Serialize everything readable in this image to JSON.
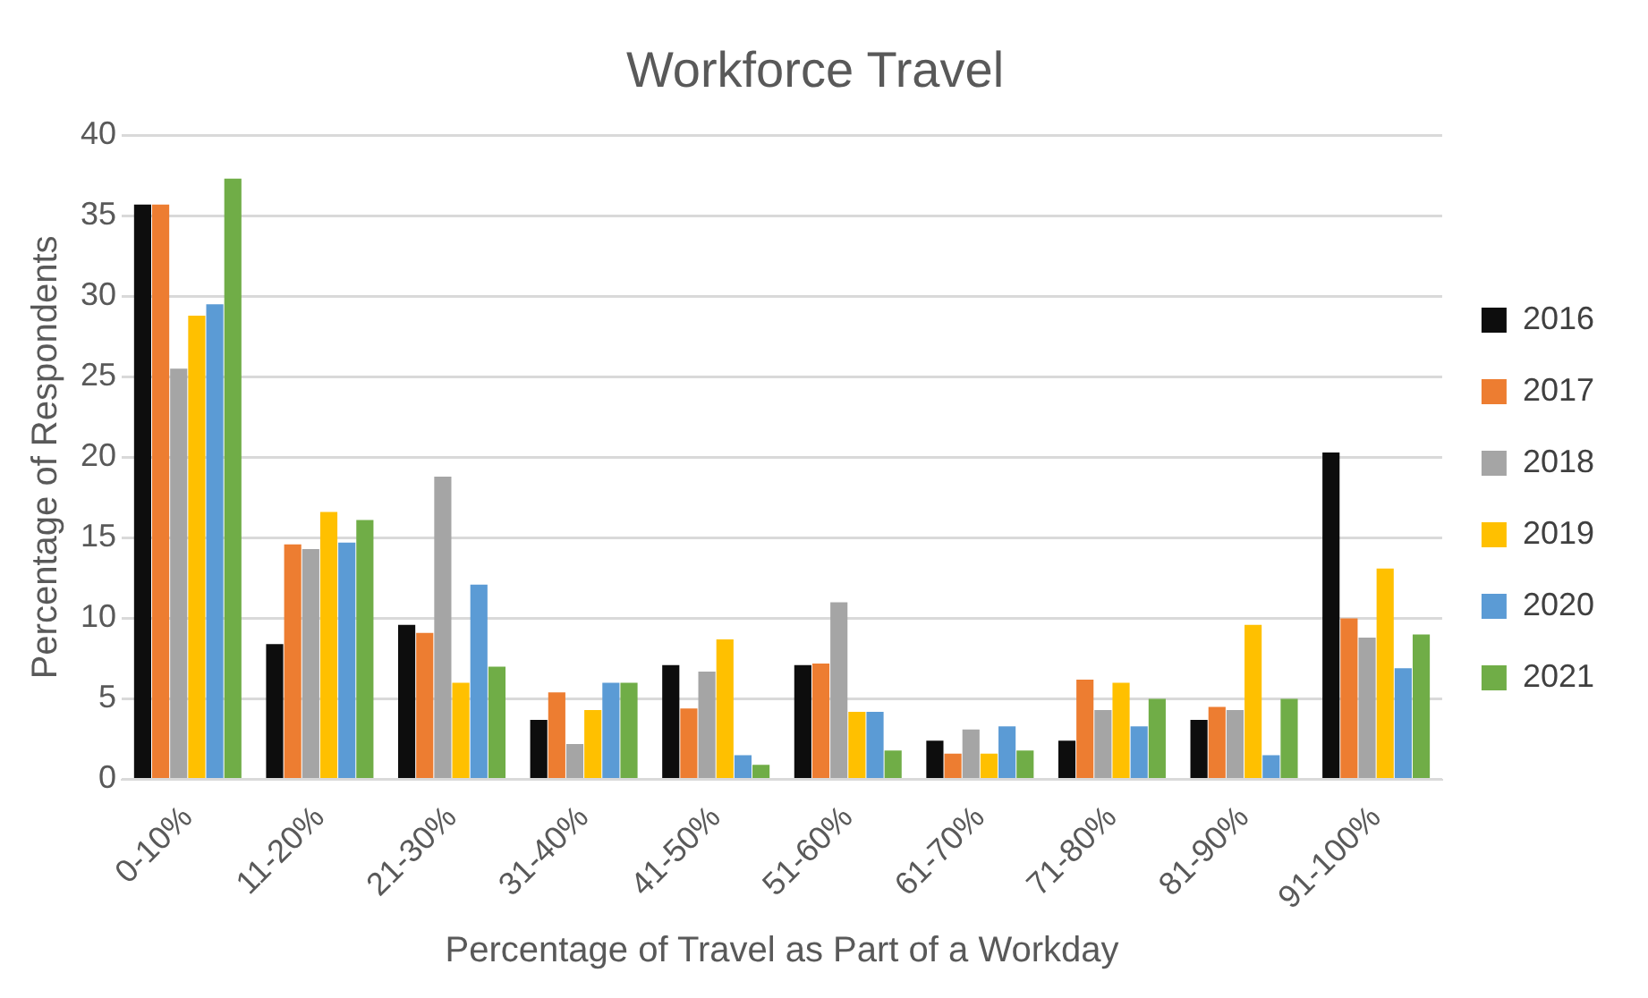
{
  "chart_data": {
    "type": "bar",
    "title": "Workforce Travel",
    "xlabel": "Percentage of Travel as Part of a Workday",
    "ylabel": "Percentage of Respondents",
    "categories": [
      "0-10%",
      "11-20%",
      "21-30%",
      "31-40%",
      "41-50%",
      "51-60%",
      "61-70%",
      "71-80%",
      "81-90%",
      "91-100%"
    ],
    "series": [
      {
        "name": "2016",
        "color": "#0d0d0d",
        "values": [
          35.7,
          8.4,
          9.6,
          3.7,
          7.1,
          7.1,
          2.4,
          2.4,
          3.7,
          20.3
        ]
      },
      {
        "name": "2017",
        "color": "#ed7d31",
        "values": [
          35.7,
          14.6,
          9.1,
          5.4,
          4.4,
          7.2,
          1.6,
          6.2,
          4.5,
          10.0
        ]
      },
      {
        "name": "2018",
        "color": "#a5a5a5",
        "values": [
          25.5,
          14.3,
          18.8,
          2.2,
          6.7,
          11.0,
          3.1,
          4.3,
          4.3,
          8.8
        ]
      },
      {
        "name": "2019",
        "color": "#ffc000",
        "values": [
          28.8,
          16.6,
          6.0,
          4.3,
          8.7,
          4.2,
          1.6,
          6.0,
          9.6,
          13.1
        ]
      },
      {
        "name": "2020",
        "color": "#5b9bd5",
        "values": [
          29.5,
          14.7,
          12.1,
          6.0,
          1.5,
          4.2,
          3.3,
          3.3,
          1.5,
          6.9
        ]
      },
      {
        "name": "2021",
        "color": "#70ad47",
        "values": [
          37.3,
          16.1,
          7.0,
          6.0,
          0.9,
          1.8,
          1.8,
          5.0,
          5.0,
          9.0
        ]
      }
    ],
    "ylim": [
      0,
      40
    ],
    "yticks": [
      0,
      5,
      10,
      15,
      20,
      25,
      30,
      35,
      40
    ],
    "grid": "y",
    "legend": "right"
  }
}
